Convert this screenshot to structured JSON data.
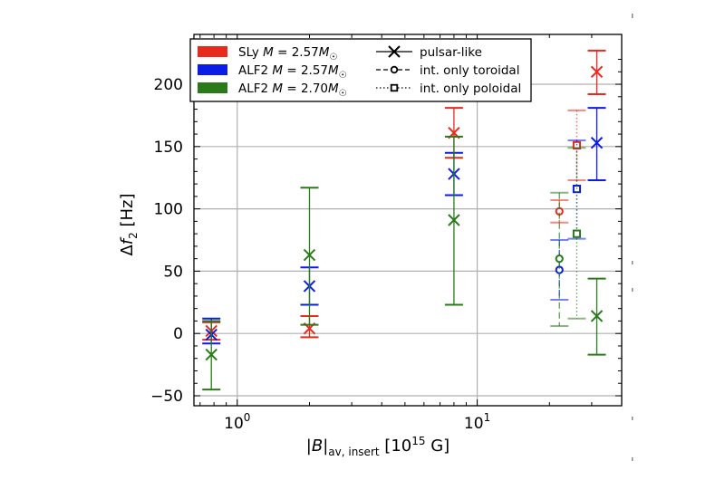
{
  "chart_data": {
    "type": "scatter",
    "xlabel": "|B|av, insert [10^15 G]",
    "ylabel": "Δf2 [Hz]",
    "xscale": "log",
    "xlim": [
      0.66,
      40
    ],
    "ylim": [
      -58,
      240
    ],
    "grid": true,
    "legend_position": "top",
    "x_tick_labels": [
      {
        "value": 1,
        "label": "10^0"
      },
      {
        "value": 10,
        "label": "10^1"
      }
    ],
    "y_tick_labels": [
      {
        "value": -50,
        "label": "−50"
      },
      {
        "value": 0,
        "label": "0"
      },
      {
        "value": 50,
        "label": "50"
      },
      {
        "value": 100,
        "label": "100"
      },
      {
        "value": 150,
        "label": "150"
      },
      {
        "value": 200,
        "label": "200"
      }
    ],
    "legend_models": [
      {
        "label": "SLy M = 2.57M☉",
        "color": "#e8291c"
      },
      {
        "label": "ALF2 M = 2.57M☉",
        "color": "#0a1de6"
      },
      {
        "label": "ALF2 M = 2.70M☉",
        "color": "#2a7a1a"
      }
    ],
    "legend_types": [
      {
        "label": "pulsar-like",
        "marker": "x",
        "line": "solid"
      },
      {
        "label": "int. only toroidal",
        "marker": "circle",
        "line": "dashed"
      },
      {
        "label": "int. only poloidal",
        "marker": "square",
        "line": "dotted"
      }
    ],
    "series": [
      {
        "name": "SLy M = 2.57M☉, pulsar-like",
        "color": "#e8291c",
        "marker": "x",
        "line": "solid",
        "points": [
          {
            "x": 0.78,
            "y": 2,
            "ylo": -5,
            "yhi": 9
          },
          {
            "x": 2.0,
            "y": 4,
            "ylo": -3,
            "yhi": 14
          },
          {
            "x": 8.0,
            "y": 161,
            "ylo": 141,
            "yhi": 181
          },
          {
            "x": 31.5,
            "y": 210,
            "ylo": 192,
            "yhi": 227
          }
        ]
      },
      {
        "name": "ALF2 M = 2.57M☉, pulsar-like",
        "color": "#0a1de6",
        "marker": "x",
        "line": "solid",
        "points": [
          {
            "x": 0.78,
            "y": -1,
            "ylo": -8,
            "yhi": 12
          },
          {
            "x": 2.0,
            "y": 38,
            "ylo": 23,
            "yhi": 53
          },
          {
            "x": 8.0,
            "y": 128,
            "ylo": 111,
            "yhi": 145
          },
          {
            "x": 31.5,
            "y": 153,
            "ylo": 123,
            "yhi": 181
          }
        ]
      },
      {
        "name": "ALF2 M = 2.70M☉, pulsar-like",
        "color": "#2a7a1a",
        "marker": "x",
        "line": "solid",
        "points": [
          {
            "x": 0.78,
            "y": -17,
            "ylo": -45,
            "yhi": 10
          },
          {
            "x": 2.0,
            "y": 63,
            "ylo": 7,
            "yhi": 117
          },
          {
            "x": 8.0,
            "y": 91,
            "ylo": 23,
            "yhi": 158
          },
          {
            "x": 31.5,
            "y": 14,
            "ylo": -17,
            "yhi": 44
          }
        ]
      },
      {
        "name": "SLy M = 2.57M☉, int. only toroidal",
        "color": "#e8291c",
        "marker": "circle",
        "line": "dashed",
        "points": [
          {
            "x": 22.0,
            "y": 98,
            "ylo": 89,
            "yhi": 107
          }
        ]
      },
      {
        "name": "ALF2 M = 2.57M☉, int. only toroidal",
        "color": "#0a1de6",
        "marker": "circle",
        "line": "dashed",
        "points": [
          {
            "x": 22.0,
            "y": 51,
            "ylo": 27,
            "yhi": 75
          }
        ]
      },
      {
        "name": "ALF2 M = 2.70M☉, int. only toroidal",
        "color": "#2a7a1a",
        "marker": "circle",
        "line": "dashed",
        "points": [
          {
            "x": 22.0,
            "y": 60,
            "ylo": 6,
            "yhi": 113
          }
        ]
      },
      {
        "name": "SLy M = 2.57M☉, int. only poloidal",
        "color": "#e8291c",
        "marker": "square",
        "line": "dotted",
        "points": [
          {
            "x": 26.0,
            "y": 151,
            "ylo": 123,
            "yhi": 179
          }
        ]
      },
      {
        "name": "ALF2 M = 2.57M☉, int. only poloidal",
        "color": "#0a1de6",
        "marker": "square",
        "line": "dotted",
        "points": [
          {
            "x": 26.0,
            "y": 116,
            "ylo": 76,
            "yhi": 155
          }
        ]
      },
      {
        "name": "ALF2 M = 2.70M☉, int. only poloidal",
        "color": "#2a7a1a",
        "marker": "square",
        "line": "dotted",
        "points": [
          {
            "x": 26.0,
            "y": 80,
            "ylo": 12,
            "yhi": 149
          }
        ]
      }
    ]
  }
}
